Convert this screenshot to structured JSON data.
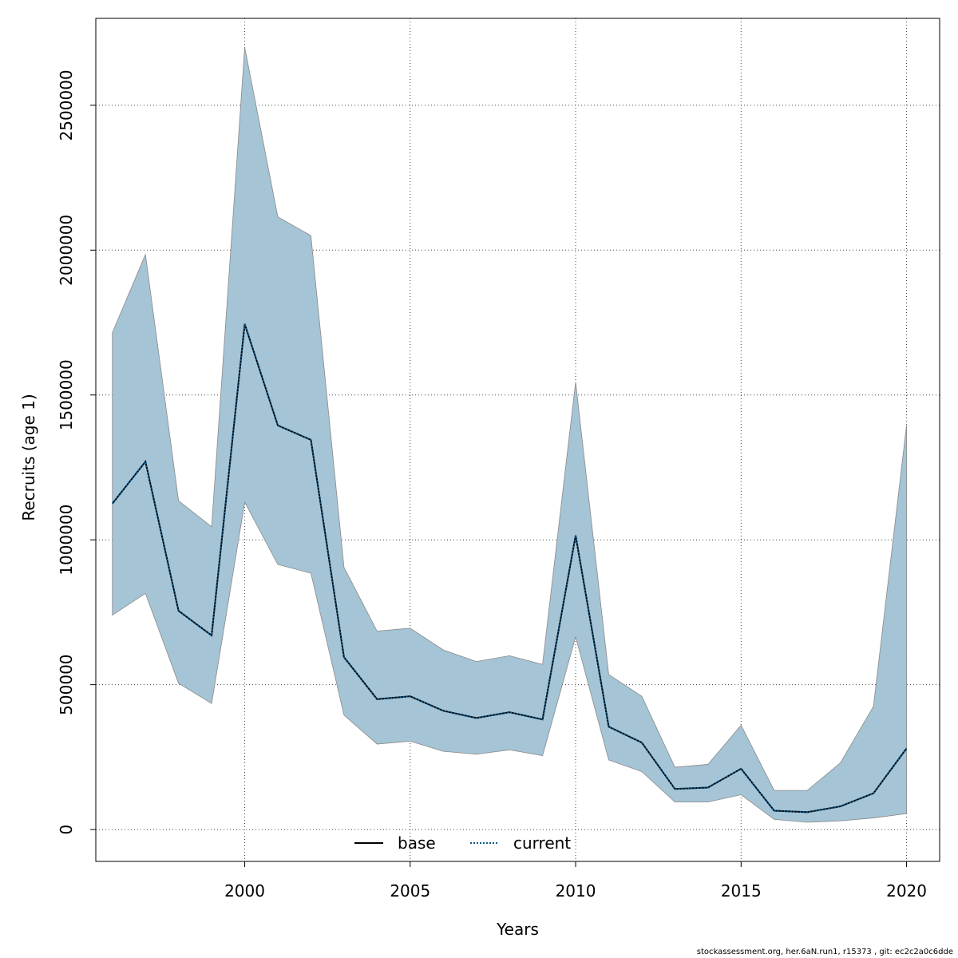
{
  "chart_data": {
    "type": "area",
    "title": "",
    "xlabel": "Years",
    "ylabel": "Recruits (age 1)",
    "xlim": [
      1995.5,
      2021
    ],
    "ylim": [
      -110000,
      2800000
    ],
    "x_ticks": [
      2000,
      2005,
      2010,
      2015,
      2020
    ],
    "y_ticks": [
      0,
      500000,
      1000000,
      1500000,
      2000000,
      2500000
    ],
    "grid": true,
    "legend_position": "bottom",
    "colors": {
      "band": "#A5C4D5",
      "band_edge": "#8A8A8A",
      "base": "#000000",
      "current_dot": "#0C5A8C",
      "grid": "#444444"
    },
    "legend": [
      {
        "name": "base",
        "style": "solid"
      },
      {
        "name": "current",
        "style": "dotted"
      }
    ],
    "x": [
      1996,
      1997,
      1998,
      1999,
      2000,
      2001,
      2002,
      2003,
      2004,
      2005,
      2006,
      2007,
      2008,
      2009,
      2010,
      2011,
      2012,
      2013,
      2014,
      2015,
      2016,
      2017,
      2018,
      2019,
      2020
    ],
    "series": [
      {
        "name": "base",
        "values": [
          1125000,
          1270000,
          755000,
          670000,
          1745000,
          1395000,
          1345000,
          595000,
          450000,
          460000,
          410000,
          385000,
          405000,
          380000,
          1015000,
          355000,
          300000,
          140000,
          145000,
          210000,
          65000,
          60000,
          80000,
          125000,
          280000
        ]
      },
      {
        "name": "current",
        "values": [
          1125000,
          1270000,
          755000,
          670000,
          1745000,
          1395000,
          1345000,
          595000,
          450000,
          460000,
          410000,
          385000,
          405000,
          380000,
          1015000,
          355000,
          300000,
          140000,
          145000,
          210000,
          65000,
          60000,
          80000,
          125000,
          280000
        ]
      }
    ],
    "band": {
      "upper": [
        1715000,
        1985000,
        1135000,
        1045000,
        2700000,
        2115000,
        2050000,
        905000,
        685000,
        695000,
        620000,
        580000,
        600000,
        570000,
        1545000,
        535000,
        460000,
        215000,
        225000,
        360000,
        135000,
        135000,
        230000,
        425000,
        1395000
      ],
      "lower": [
        740000,
        815000,
        505000,
        435000,
        1130000,
        915000,
        885000,
        395000,
        295000,
        305000,
        270000,
        260000,
        275000,
        255000,
        665000,
        240000,
        200000,
        95000,
        95000,
        120000,
        35000,
        25000,
        30000,
        40000,
        55000
      ]
    }
  },
  "footer": "stockassessment.org, her.6aN.run1, r15373 , git: ec2c2a0c6dde"
}
